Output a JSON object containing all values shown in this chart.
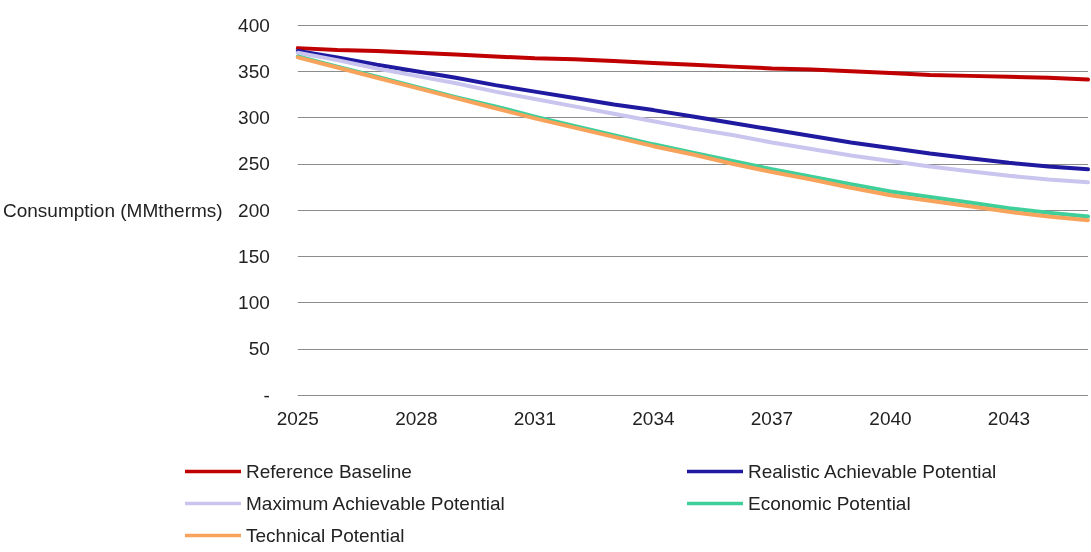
{
  "chart_data": {
    "type": "line",
    "ylabel": "Consumption (MMtherms)",
    "categories": [
      "2025",
      null,
      null,
      "2028",
      null,
      null,
      "2031",
      null,
      null,
      "2034",
      null,
      null,
      "2037",
      null,
      null,
      "2040",
      null,
      null,
      "2043",
      null,
      null
    ],
    "series": [
      {
        "name": "Reference Baseline",
        "color": "#c00000",
        "values": [
          375,
          373,
          372,
          370,
          368,
          366,
          364,
          363,
          361,
          359,
          357,
          355,
          353,
          352,
          350,
          348,
          346,
          345,
          344,
          343,
          341
        ]
      },
      {
        "name": "Realistic Achievable Potential",
        "color": "#1f1aa0",
        "values": [
          372,
          365,
          357,
          350,
          343,
          335,
          328,
          321,
          314,
          308,
          301,
          294,
          287,
          280,
          273,
          267,
          261,
          256,
          251,
          247,
          244
        ]
      },
      {
        "name": "Maximum Achievable Potential",
        "color": "#c9c5ef",
        "values": [
          370,
          362,
          353,
          345,
          337,
          328,
          320,
          312,
          304,
          296,
          288,
          281,
          273,
          266,
          259,
          253,
          247,
          242,
          237,
          233,
          230
        ]
      },
      {
        "name": "Economic Potential",
        "color": "#3fcf9a",
        "values": [
          366,
          355,
          344,
          333,
          322,
          312,
          301,
          291,
          281,
          271,
          262,
          253,
          244,
          236,
          228,
          220,
          214,
          208,
          202,
          197,
          193
        ]
      },
      {
        "name": "Technical Potential",
        "color": "#f7a35c",
        "values": [
          365,
          354,
          343,
          332,
          321,
          310,
          299,
          289,
          279,
          269,
          260,
          250,
          241,
          233,
          224,
          216,
          210,
          204,
          198,
          193,
          189
        ]
      }
    ],
    "ylim": [
      0,
      400
    ],
    "yticks": [
      {
        "value": 0,
        "label": "-"
      },
      50,
      100,
      150,
      200,
      250,
      300,
      350,
      400
    ],
    "grid": "y",
    "legend": "bottom",
    "marker": "none",
    "line_style": "solid"
  }
}
